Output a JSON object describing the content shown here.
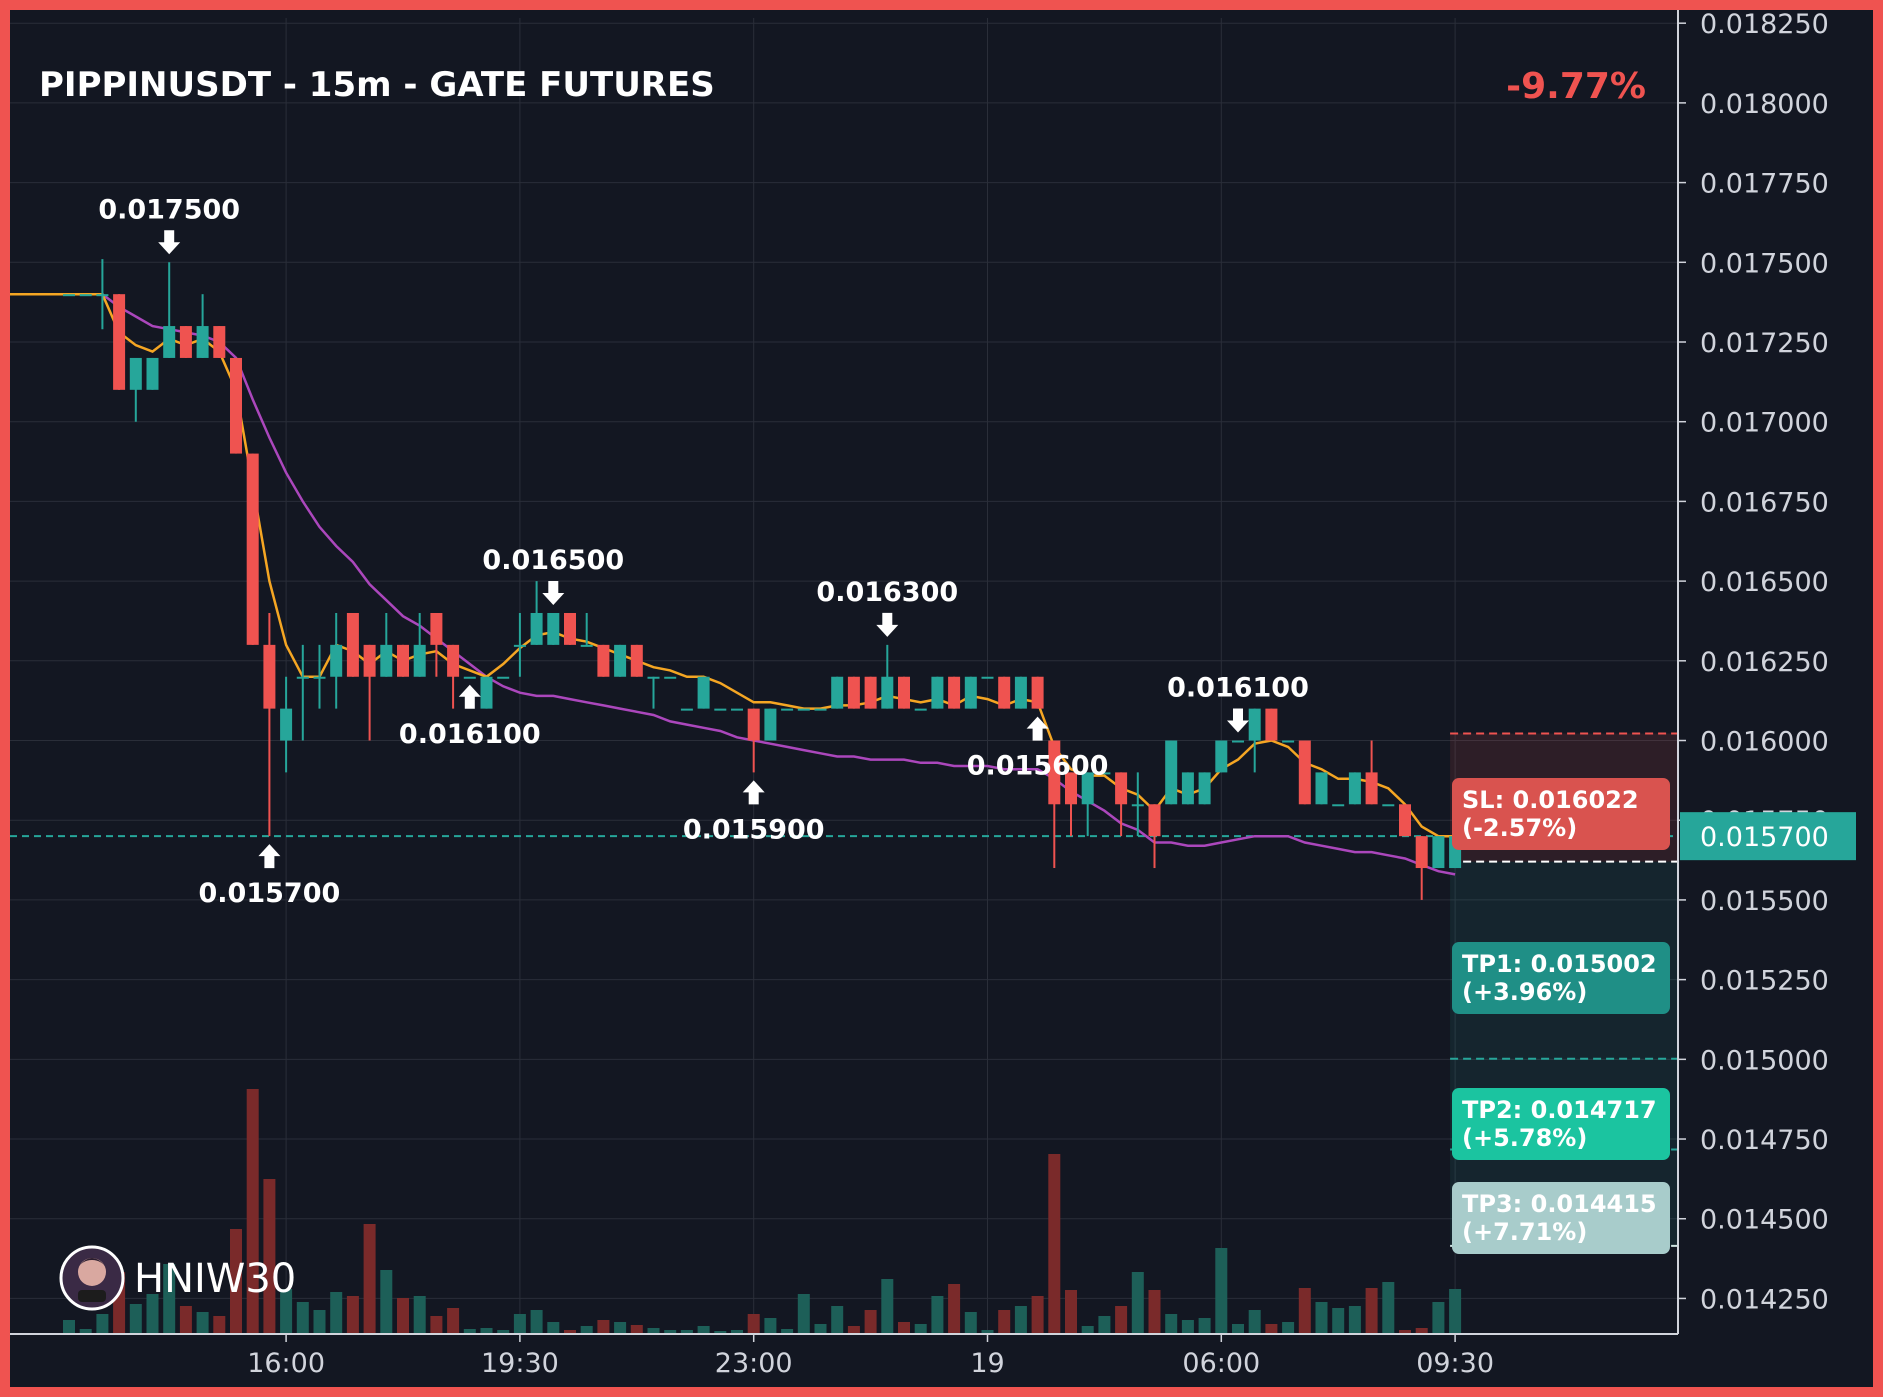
{
  "chart": {
    "title": "PIPPINUSDT - 15m - GATE FUTURES",
    "change": "-9.77%",
    "author": "HNIW30",
    "colors": {
      "up": "#26a69a",
      "down": "#ef5350",
      "ema_fast": "#f5a623",
      "ema_slow": "#ab47bc",
      "background": "#131722",
      "border": "#ef5350",
      "grid": "#2a2e39"
    }
  },
  "chart_data": {
    "type": "candlestick",
    "ylim": [
      0.01422,
      0.01826
    ],
    "y_ticks": [
      "0.014250",
      "0.014500",
      "0.014750",
      "0.015000",
      "0.015250",
      "0.015500",
      "0.015750",
      "0.016000",
      "0.016250",
      "0.016500",
      "0.016750",
      "0.017000",
      "0.017250",
      "0.017500",
      "0.017750",
      "0.018000",
      "0.018250"
    ],
    "x_ticks": [
      {
        "index": 13,
        "label": "16:00"
      },
      {
        "index": 27,
        "label": "19:30"
      },
      {
        "index": 41,
        "label": "23:00"
      },
      {
        "index": 55,
        "label": "19"
      },
      {
        "index": 69,
        "label": "06:00"
      },
      {
        "index": 83,
        "label": "09:30"
      }
    ],
    "current_price": {
      "value": 0.0157,
      "label": "0.015700"
    },
    "candles": [
      {
        "o": 0.0174,
        "h": 0.0174,
        "l": 0.0174,
        "c": 0.0174,
        "v": 14
      },
      {
        "o": 0.0174,
        "h": 0.0174,
        "l": 0.0174,
        "c": 0.0174,
        "v": 5
      },
      {
        "o": 0.0174,
        "h": 0.01751,
        "l": 0.01729,
        "c": 0.0174,
        "v": 20
      },
      {
        "o": 0.0174,
        "h": 0.0174,
        "l": 0.0171,
        "c": 0.0171,
        "v": 62
      },
      {
        "o": 0.0171,
        "h": 0.0172,
        "l": 0.017,
        "c": 0.0172,
        "v": 30
      },
      {
        "o": 0.0171,
        "h": 0.0172,
        "l": 0.0171,
        "c": 0.0172,
        "v": 40
      },
      {
        "o": 0.0172,
        "h": 0.0175,
        "l": 0.0172,
        "c": 0.0173,
        "v": 70
      },
      {
        "o": 0.0173,
        "h": 0.0173,
        "l": 0.0172,
        "c": 0.0172,
        "v": 28
      },
      {
        "o": 0.0172,
        "h": 0.0174,
        "l": 0.0172,
        "c": 0.0173,
        "v": 22
      },
      {
        "o": 0.0173,
        "h": 0.0173,
        "l": 0.0172,
        "c": 0.0172,
        "v": 18
      },
      {
        "o": 0.0172,
        "h": 0.0172,
        "l": 0.0169,
        "c": 0.0169,
        "v": 105
      },
      {
        "o": 0.0169,
        "h": 0.0169,
        "l": 0.0163,
        "c": 0.0163,
        "v": 245
      },
      {
        "o": 0.0163,
        "h": 0.0164,
        "l": 0.0157,
        "c": 0.0161,
        "v": 155
      },
      {
        "o": 0.016,
        "h": 0.0162,
        "l": 0.0159,
        "c": 0.0161,
        "v": 45
      },
      {
        "o": 0.0162,
        "h": 0.0163,
        "l": 0.016,
        "c": 0.0162,
        "v": 32
      },
      {
        "o": 0.0162,
        "h": 0.0163,
        "l": 0.0161,
        "c": 0.0162,
        "v": 24
      },
      {
        "o": 0.0162,
        "h": 0.0164,
        "l": 0.0161,
        "c": 0.0163,
        "v": 42
      },
      {
        "o": 0.0164,
        "h": 0.0164,
        "l": 0.0162,
        "c": 0.0162,
        "v": 38
      },
      {
        "o": 0.0163,
        "h": 0.0163,
        "l": 0.016,
        "c": 0.0162,
        "v": 110
      },
      {
        "o": 0.0162,
        "h": 0.0164,
        "l": 0.0162,
        "c": 0.0163,
        "v": 64
      },
      {
        "o": 0.0163,
        "h": 0.0163,
        "l": 0.0162,
        "c": 0.0162,
        "v": 36
      },
      {
        "o": 0.0162,
        "h": 0.0164,
        "l": 0.0162,
        "c": 0.0163,
        "v": 38
      },
      {
        "o": 0.0164,
        "h": 0.0164,
        "l": 0.0162,
        "c": 0.0163,
        "v": 18
      },
      {
        "o": 0.0163,
        "h": 0.0163,
        "l": 0.0161,
        "c": 0.0162,
        "v": 26
      },
      {
        "o": 0.0162,
        "h": 0.0162,
        "l": 0.0162,
        "c": 0.0162,
        "v": 5
      },
      {
        "o": 0.0161,
        "h": 0.0162,
        "l": 0.0161,
        "c": 0.0162,
        "v": 6
      },
      {
        "o": 0.0162,
        "h": 0.0162,
        "l": 0.0162,
        "c": 0.0162,
        "v": 4
      },
      {
        "o": 0.0163,
        "h": 0.0164,
        "l": 0.0162,
        "c": 0.0163,
        "v": 20
      },
      {
        "o": 0.0163,
        "h": 0.0165,
        "l": 0.0163,
        "c": 0.0164,
        "v": 24
      },
      {
        "o": 0.0163,
        "h": 0.0164,
        "l": 0.0163,
        "c": 0.0164,
        "v": 12
      },
      {
        "o": 0.0164,
        "h": 0.0164,
        "l": 0.0163,
        "c": 0.0163,
        "v": 4
      },
      {
        "o": 0.0163,
        "h": 0.0164,
        "l": 0.0163,
        "c": 0.0163,
        "v": 8
      },
      {
        "o": 0.0163,
        "h": 0.0163,
        "l": 0.0162,
        "c": 0.0162,
        "v": 14
      },
      {
        "o": 0.0162,
        "h": 0.0163,
        "l": 0.0162,
        "c": 0.0163,
        "v": 12
      },
      {
        "o": 0.0163,
        "h": 0.0163,
        "l": 0.0162,
        "c": 0.0162,
        "v": 9
      },
      {
        "o": 0.0162,
        "h": 0.0162,
        "l": 0.0161,
        "c": 0.0162,
        "v": 6
      },
      {
        "o": 0.0162,
        "h": 0.0162,
        "l": 0.0162,
        "c": 0.0162,
        "v": 4
      },
      {
        "o": 0.0161,
        "h": 0.0161,
        "l": 0.0161,
        "c": 0.0161,
        "v": 4
      },
      {
        "o": 0.0161,
        "h": 0.0162,
        "l": 0.0161,
        "c": 0.0162,
        "v": 8
      },
      {
        "o": 0.0161,
        "h": 0.0161,
        "l": 0.0161,
        "c": 0.0161,
        "v": 3
      },
      {
        "o": 0.0161,
        "h": 0.0161,
        "l": 0.0161,
        "c": 0.0161,
        "v": 4
      },
      {
        "o": 0.0161,
        "h": 0.0161,
        "l": 0.0159,
        "c": 0.016,
        "v": 20
      },
      {
        "o": 0.016,
        "h": 0.0161,
        "l": 0.016,
        "c": 0.0161,
        "v": 16
      },
      {
        "o": 0.0161,
        "h": 0.0161,
        "l": 0.0161,
        "c": 0.0161,
        "v": 5
      },
      {
        "o": 0.0161,
        "h": 0.0161,
        "l": 0.0161,
        "c": 0.0161,
        "v": 40
      },
      {
        "o": 0.0161,
        "h": 0.0161,
        "l": 0.0161,
        "c": 0.0161,
        "v": 10
      },
      {
        "o": 0.0161,
        "h": 0.0162,
        "l": 0.0161,
        "c": 0.0162,
        "v": 28
      },
      {
        "o": 0.0162,
        "h": 0.0162,
        "l": 0.0161,
        "c": 0.0161,
        "v": 8
      },
      {
        "o": 0.0162,
        "h": 0.0162,
        "l": 0.0161,
        "c": 0.0161,
        "v": 24
      },
      {
        "o": 0.0161,
        "h": 0.0163,
        "l": 0.0161,
        "c": 0.0162,
        "v": 55
      },
      {
        "o": 0.0162,
        "h": 0.0162,
        "l": 0.0161,
        "c": 0.0161,
        "v": 12
      },
      {
        "o": 0.0161,
        "h": 0.0161,
        "l": 0.0161,
        "c": 0.0161,
        "v": 10
      },
      {
        "o": 0.0161,
        "h": 0.0162,
        "l": 0.0161,
        "c": 0.0162,
        "v": 38
      },
      {
        "o": 0.0162,
        "h": 0.0162,
        "l": 0.0161,
        "c": 0.0161,
        "v": 50
      },
      {
        "o": 0.0161,
        "h": 0.0162,
        "l": 0.0161,
        "c": 0.0162,
        "v": 22
      },
      {
        "o": 0.0162,
        "h": 0.0162,
        "l": 0.0162,
        "c": 0.0162,
        "v": 4
      },
      {
        "o": 0.0162,
        "h": 0.0162,
        "l": 0.0161,
        "c": 0.0161,
        "v": 24
      },
      {
        "o": 0.0161,
        "h": 0.0162,
        "l": 0.0161,
        "c": 0.0162,
        "v": 28
      },
      {
        "o": 0.0162,
        "h": 0.0162,
        "l": 0.0161,
        "c": 0.0161,
        "v": 38
      },
      {
        "o": 0.016,
        "h": 0.016,
        "l": 0.0156,
        "c": 0.0158,
        "v": 180
      },
      {
        "o": 0.0159,
        "h": 0.0159,
        "l": 0.0157,
        "c": 0.0158,
        "v": 44
      },
      {
        "o": 0.0158,
        "h": 0.0159,
        "l": 0.0157,
        "c": 0.0159,
        "v": 8
      },
      {
        "o": 0.0159,
        "h": 0.0159,
        "l": 0.0159,
        "c": 0.0159,
        "v": 18
      },
      {
        "o": 0.0159,
        "h": 0.0159,
        "l": 0.0157,
        "c": 0.0158,
        "v": 28
      },
      {
        "o": 0.0158,
        "h": 0.0159,
        "l": 0.0157,
        "c": 0.0158,
        "v": 62
      },
      {
        "o": 0.0158,
        "h": 0.0158,
        "l": 0.0156,
        "c": 0.0157,
        "v": 44
      },
      {
        "o": 0.0158,
        "h": 0.016,
        "l": 0.0158,
        "c": 0.016,
        "v": 20
      },
      {
        "o": 0.0158,
        "h": 0.0159,
        "l": 0.0158,
        "c": 0.0159,
        "v": 14
      },
      {
        "o": 0.0158,
        "h": 0.0159,
        "l": 0.0158,
        "c": 0.0159,
        "v": 16
      },
      {
        "o": 0.0159,
        "h": 0.016,
        "l": 0.0159,
        "c": 0.016,
        "v": 86
      },
      {
        "o": 0.016,
        "h": 0.016,
        "l": 0.016,
        "c": 0.016,
        "v": 10
      },
      {
        "o": 0.016,
        "h": 0.0161,
        "l": 0.0159,
        "c": 0.0161,
        "v": 24
      },
      {
        "o": 0.0161,
        "h": 0.0161,
        "l": 0.016,
        "c": 0.016,
        "v": 10
      },
      {
        "o": 0.016,
        "h": 0.016,
        "l": 0.016,
        "c": 0.016,
        "v": 12
      },
      {
        "o": 0.016,
        "h": 0.016,
        "l": 0.0158,
        "c": 0.0158,
        "v": 46
      },
      {
        "o": 0.0158,
        "h": 0.0159,
        "l": 0.0158,
        "c": 0.0159,
        "v": 32
      },
      {
        "o": 0.0158,
        "h": 0.0158,
        "l": 0.0158,
        "c": 0.0158,
        "v": 26
      },
      {
        "o": 0.0158,
        "h": 0.0159,
        "l": 0.0158,
        "c": 0.0159,
        "v": 28
      },
      {
        "o": 0.0159,
        "h": 0.016,
        "l": 0.0158,
        "c": 0.0158,
        "v": 46
      },
      {
        "o": 0.0158,
        "h": 0.0158,
        "l": 0.0158,
        "c": 0.0158,
        "v": 52
      },
      {
        "o": 0.0158,
        "h": 0.0158,
        "l": 0.0157,
        "c": 0.0157,
        "v": 4
      },
      {
        "o": 0.0157,
        "h": 0.0157,
        "l": 0.0155,
        "c": 0.0156,
        "v": 6
      },
      {
        "o": 0.0156,
        "h": 0.0157,
        "l": 0.0156,
        "c": 0.0157,
        "v": 32
      },
      {
        "o": 0.0156,
        "h": 0.0157,
        "l": 0.0156,
        "c": 0.0157,
        "v": 45
      }
    ],
    "ema_fast": [
      0.0174,
      0.0174,
      0.0174,
      0.01728,
      0.01724,
      0.01722,
      0.01726,
      0.01724,
      0.01726,
      0.01722,
      0.0171,
      0.0168,
      0.0165,
      0.0163,
      0.0162,
      0.0162,
      0.0163,
      0.01628,
      0.01624,
      0.01628,
      0.01625,
      0.01627,
      0.01628,
      0.01624,
      0.01622,
      0.0162,
      0.01624,
      0.01629,
      0.01633,
      0.01634,
      0.01632,
      0.01631,
      0.01629,
      0.01627,
      0.01625,
      0.01623,
      0.01622,
      0.0162,
      0.0162,
      0.01618,
      0.01615,
      0.01612,
      0.01612,
      0.01611,
      0.0161,
      0.0161,
      0.01611,
      0.01611,
      0.01612,
      0.01614,
      0.01613,
      0.01612,
      0.01613,
      0.01611,
      0.01614,
      0.01613,
      0.01611,
      0.01613,
      0.01612,
      0.01598,
      0.01591,
      0.01589,
      0.01589,
      0.01585,
      0.01583,
      0.01578,
      0.01585,
      0.01583,
      0.01585,
      0.01591,
      0.01594,
      0.01599,
      0.016,
      0.01598,
      0.01593,
      0.01591,
      0.01588,
      0.01588,
      0.01587,
      0.01585,
      0.0158,
      0.01573,
      0.0157,
      0.0157
    ],
    "ema_slow": [
      0.0174,
      0.0174,
      0.0174,
      0.01736,
      0.01733,
      0.0173,
      0.01729,
      0.01728,
      0.01727,
      0.01725,
      0.0172,
      0.01707,
      0.01695,
      0.01684,
      0.01675,
      0.01667,
      0.01661,
      0.01656,
      0.01649,
      0.01644,
      0.01639,
      0.01636,
      0.01632,
      0.01628,
      0.01624,
      0.0162,
      0.01617,
      0.01615,
      0.01614,
      0.01614,
      0.01613,
      0.01612,
      0.01611,
      0.0161,
      0.01609,
      0.01608,
      0.01606,
      0.01605,
      0.01604,
      0.01603,
      0.01601,
      0.016,
      0.01599,
      0.01598,
      0.01597,
      0.01596,
      0.01595,
      0.01595,
      0.01594,
      0.01594,
      0.01594,
      0.01593,
      0.01593,
      0.01592,
      0.01592,
      0.01592,
      0.01591,
      0.01591,
      0.01591,
      0.01588,
      0.01584,
      0.01581,
      0.01578,
      0.01574,
      0.01572,
      0.01568,
      0.01568,
      0.01567,
      0.01567,
      0.01568,
      0.01569,
      0.0157,
      0.0157,
      0.0157,
      0.01568,
      0.01567,
      0.01566,
      0.01565,
      0.01565,
      0.01564,
      0.01563,
      0.01561,
      0.01559,
      0.01558
    ],
    "annotations": [
      {
        "index": 6,
        "price": 0.0175,
        "label": "0.017500",
        "dir": "down"
      },
      {
        "index": 12,
        "price": 0.0157,
        "label": "0.015700",
        "dir": "up"
      },
      {
        "index": 24,
        "price": 0.0161,
        "label": "0.016100",
        "dir": "up"
      },
      {
        "index": 29,
        "price": 0.0165,
        "label": "0.016500",
        "dir": "down"
      },
      {
        "index": 41,
        "price": 0.0159,
        "label": "0.015900",
        "dir": "up"
      },
      {
        "index": 49,
        "price": 0.0163,
        "label": "0.016300",
        "dir": "down"
      },
      {
        "index": 58,
        "price": 0.0156,
        "label": "0.015600",
        "dir": "up"
      },
      {
        "index": 70,
        "price": 0.0161,
        "label": "0.016100",
        "dir": "down"
      }
    ],
    "trade": {
      "entry": 0.01562,
      "sl": {
        "price": 0.016022,
        "label": "SL: 0.016022",
        "pct": "(-2.57%)",
        "color": "#d9534f"
      },
      "targets": [
        {
          "price": 0.015002,
          "label": "TP1: 0.015002",
          "pct": "(+3.96%)",
          "color": "#1f8f86"
        },
        {
          "price": 0.014717,
          "label": "TP2: 0.014717",
          "pct": "(+5.78%)",
          "color": "#1bc4a0"
        },
        {
          "price": 0.014415,
          "label": "TP3: 0.014415",
          "pct": "(+7.71%)",
          "color": "#a8cccb"
        }
      ]
    }
  }
}
